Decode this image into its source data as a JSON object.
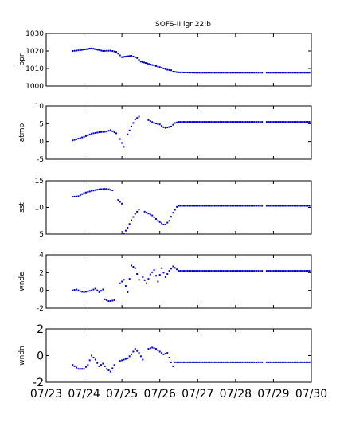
{
  "chart_data": {
    "type": "scatter",
    "title": "SOFS-II lgr 22:b",
    "marker_color": "#0000cc",
    "x_tick_labels": [
      "07/23",
      "07/24",
      "07/25",
      "07/26",
      "07/27",
      "07/28",
      "07/29",
      "07/30"
    ],
    "xlim": [
      0,
      7
    ],
    "panels": [
      {
        "ylabel": "bpr",
        "ylim": [
          1000,
          1030
        ],
        "yticks": [
          1000,
          1010,
          1020,
          1030
        ],
        "tick_size": "small",
        "segments": [
          {
            "x": [
              0.7,
              0.9,
              1.2,
              1.5,
              1.7,
              1.85,
              2.0,
              2.25,
              2.4,
              2.5
            ],
            "y": [
              1020.0,
              1020.5,
              1021.5,
              1020.0,
              1020.2,
              1019.5,
              1016.5,
              1017.3,
              1016.0,
              1014.0
            ]
          },
          {
            "x": [
              2.5,
              2.8,
              3.0,
              3.2,
              3.3,
              3.35,
              3.5,
              4.0,
              4.5,
              5.0,
              5.5,
              5.7
            ],
            "y": [
              1014.0,
              1012.0,
              1010.8,
              1009.3,
              1009.0,
              1008.2,
              1007.8,
              1007.6,
              1007.6,
              1007.6,
              1007.6,
              1007.6
            ]
          },
          {
            "x": [
              5.82,
              6.0,
              6.5,
              6.95
            ],
            "y": [
              1007.6,
              1007.6,
              1007.6,
              1007.6
            ]
          }
        ]
      },
      {
        "ylabel": "atmp",
        "ylim": [
          -5,
          10
        ],
        "yticks": [
          -5,
          0,
          5,
          10
        ],
        "tick_size": "small",
        "segments": [
          {
            "x": [
              0.7,
              0.85,
              1.0,
              1.2,
              1.4,
              1.6,
              1.7,
              1.85
            ],
            "y": [
              0.3,
              0.8,
              1.3,
              2.2,
              2.6,
              2.8,
              3.2,
              2.3
            ]
          },
          {
            "x": [
              1.95,
              2.05
            ],
            "y": [
              0.7,
              -1.5
            ]
          },
          {
            "x": [
              2.15,
              2.25,
              2.35,
              2.45
            ],
            "y": [
              2.0,
              4.2,
              6.2,
              7.0
            ]
          },
          {
            "x": [
              2.7,
              2.85,
              3.0,
              3.1,
              3.15,
              3.3,
              3.4,
              3.5,
              4.0,
              4.5,
              5.0,
              5.5,
              5.7
            ],
            "y": [
              6.0,
              5.2,
              4.8,
              4.0,
              3.8,
              4.2,
              5.2,
              5.5,
              5.5,
              5.5,
              5.5,
              5.5,
              5.5
            ]
          },
          {
            "x": [
              5.82,
              6.0,
              6.5,
              6.95
            ],
            "y": [
              5.5,
              5.5,
              5.5,
              5.5
            ]
          }
        ]
      },
      {
        "ylabel": "sst",
        "ylim": [
          5,
          15
        ],
        "yticks": [
          5,
          10,
          15
        ],
        "tick_size": "small",
        "segments": [
          {
            "x": [
              0.7,
              0.85,
              1.0,
              1.2,
              1.4,
              1.6,
              1.75
            ],
            "y": [
              12.0,
              12.1,
              12.7,
              13.1,
              13.4,
              13.5,
              13.2
            ]
          },
          {
            "x": [
              1.9,
              2.0
            ],
            "y": [
              11.4,
              10.7
            ]
          },
          {
            "x": [
              2.05,
              2.15,
              2.25,
              2.35,
              2.45
            ],
            "y": [
              5.1,
              6.2,
              7.6,
              8.8,
              9.6
            ]
          },
          {
            "x": [
              2.6,
              2.8,
              2.95,
              3.1,
              3.15,
              3.25,
              3.35,
              3.45,
              3.5,
              4.0,
              4.5,
              5.0,
              5.5,
              5.7
            ],
            "y": [
              9.2,
              8.5,
              7.5,
              6.8,
              6.8,
              7.5,
              9.0,
              10.1,
              10.3,
              10.3,
              10.3,
              10.3,
              10.3,
              10.3
            ]
          },
          {
            "x": [
              5.82,
              6.0,
              6.5,
              6.95
            ],
            "y": [
              10.3,
              10.3,
              10.3,
              10.3
            ]
          }
        ]
      },
      {
        "ylabel": "wnde",
        "ylim": [
          -2,
          4
        ],
        "yticks": [
          -2,
          0,
          2,
          4
        ],
        "tick_size": "small",
        "segments": [
          {
            "x": [
              0.7,
              0.8,
              0.9,
              1.0,
              1.2,
              1.3,
              1.4,
              1.5
            ],
            "y": [
              0.0,
              0.1,
              -0.1,
              -0.2,
              0.0,
              0.2,
              -0.2,
              0.1
            ]
          },
          {
            "x": [
              1.55,
              1.65,
              1.7,
              1.8
            ],
            "y": [
              -1.0,
              -1.2,
              -1.2,
              -1.1
            ]
          },
          {
            "x": [
              1.95,
              2.05,
              2.15,
              2.25,
              2.35,
              2.45
            ],
            "y": [
              0.8,
              1.2,
              -0.2,
              2.8,
              2.5,
              1.2
            ]
          },
          {
            "x": [
              2.55,
              2.65,
              2.75,
              2.85,
              2.95,
              3.05,
              3.15,
              3.25,
              3.35,
              3.5,
              4.0,
              4.5,
              5.0,
              5.5,
              5.7
            ],
            "y": [
              1.5,
              0.8,
              1.8,
              2.3,
              1.0,
              2.5,
              1.5,
              2.2,
              2.7,
              2.2,
              2.2,
              2.2,
              2.2,
              2.2,
              2.2
            ]
          },
          {
            "x": [
              5.82,
              6.0,
              6.5,
              6.95
            ],
            "y": [
              2.2,
              2.2,
              2.2,
              2.2
            ]
          }
        ]
      },
      {
        "ylabel": "wndn",
        "ylim": [
          -2,
          2
        ],
        "yticks": [
          -2,
          0,
          2
        ],
        "tick_size": "big",
        "segments": [
          {
            "x": [
              0.7,
              0.85,
              1.0,
              1.1,
              1.2,
              1.3,
              1.4,
              1.5,
              1.6,
              1.7,
              1.8
            ],
            "y": [
              -0.7,
              -1.0,
              -1.0,
              -0.7,
              0.0,
              -0.3,
              -0.8,
              -0.6,
              -1.0,
              -1.2,
              -0.7
            ]
          },
          {
            "x": [
              1.95,
              2.05,
              2.15,
              2.25,
              2.35,
              2.45,
              2.55
            ],
            "y": [
              -0.4,
              -0.3,
              -0.2,
              0.1,
              0.5,
              0.2,
              -0.3
            ]
          },
          {
            "x": [
              2.7,
              2.8,
              2.9,
              3.0,
              3.1,
              3.2,
              3.3,
              3.35
            ],
            "y": [
              0.5,
              0.6,
              0.5,
              0.3,
              0.1,
              0.2,
              -0.5,
              -0.8
            ]
          },
          {
            "x": [
              3.4,
              3.5,
              4.0,
              4.5,
              5.0,
              5.5,
              5.7
            ],
            "y": [
              -0.5,
              -0.5,
              -0.5,
              -0.5,
              -0.5,
              -0.5,
              -0.5
            ]
          },
          {
            "x": [
              5.82,
              6.0,
              6.5,
              6.95
            ],
            "y": [
              -0.5,
              -0.5,
              -0.5,
              -0.5
            ]
          }
        ]
      }
    ]
  }
}
